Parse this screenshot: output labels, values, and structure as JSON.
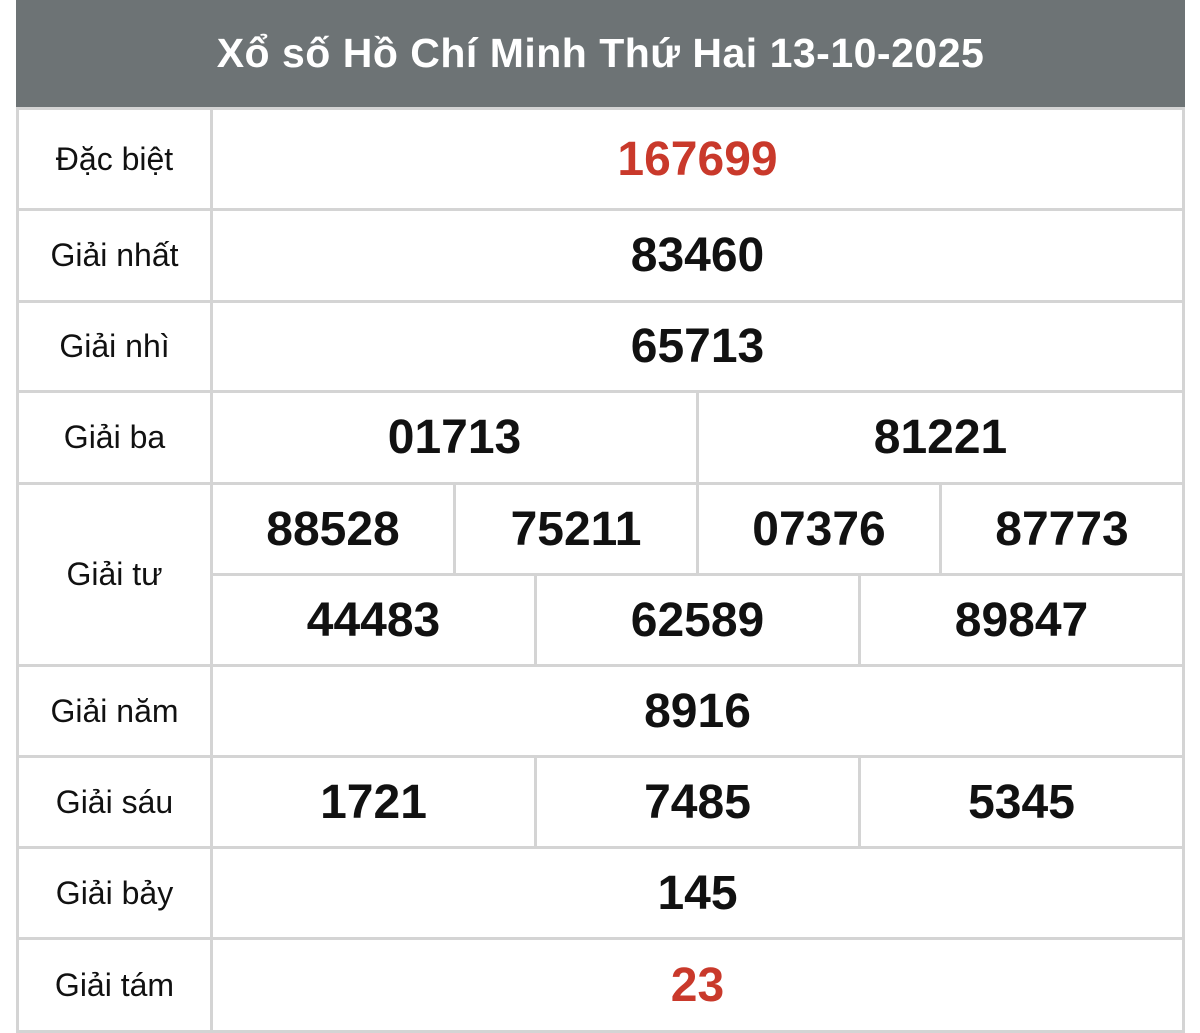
{
  "title": "Xổ số Hồ Chí Minh Thứ Hai 13-10-2025",
  "accent_color": "#c9392b",
  "header_color": "#6d7375",
  "prizes": [
    {
      "label": "Đặc biệt",
      "rows": [
        [
          "167699"
        ]
      ],
      "highlight": true
    },
    {
      "label": "Giải nhất",
      "rows": [
        [
          "83460"
        ]
      ]
    },
    {
      "label": "Giải nhì",
      "rows": [
        [
          "65713"
        ]
      ]
    },
    {
      "label": "Giải ba",
      "rows": [
        [
          "01713",
          "81221"
        ]
      ]
    },
    {
      "label": "Giải tư",
      "rows": [
        [
          "88528",
          "75211",
          "07376",
          "87773"
        ],
        [
          "44483",
          "62589",
          "89847"
        ]
      ]
    },
    {
      "label": "Giải năm",
      "rows": [
        [
          "8916"
        ]
      ]
    },
    {
      "label": "Giải sáu",
      "rows": [
        [
          "1721",
          "7485",
          "5345"
        ]
      ]
    },
    {
      "label": "Giải bảy",
      "rows": [
        [
          "145"
        ]
      ]
    },
    {
      "label": "Giải tám",
      "rows": [
        [
          "23"
        ]
      ],
      "highlight": true
    }
  ]
}
